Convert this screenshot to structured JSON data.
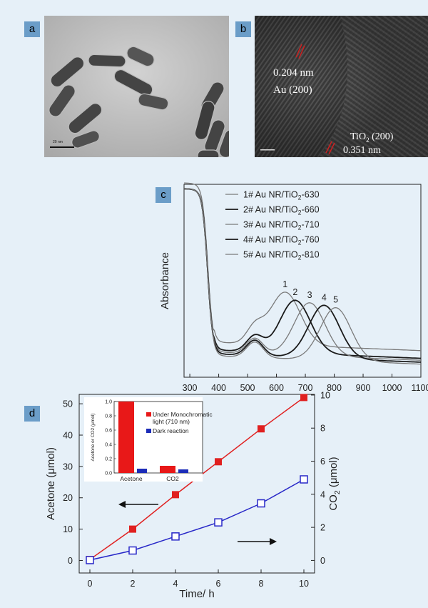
{
  "panels": {
    "a": {
      "label": "a",
      "scale_text": "20 nm"
    },
    "b": {
      "label": "b",
      "au_spacing": "0.204 nm",
      "au_plane": "Au (200)",
      "tio2_plane_main": "TiO",
      "tio2_plane_sub": "2",
      "tio2_plane_tail": " (200)",
      "tio2_spacing": "0.351 nm"
    },
    "c": {
      "label": "c"
    },
    "d": {
      "label": "d"
    }
  },
  "chart_data": [
    {
      "panel": "c",
      "type": "line",
      "ylabel": "Absorbance",
      "xlabel": "",
      "xlim": [
        280,
        1100
      ],
      "x_ticks": [
        300,
        400,
        500,
        600,
        700,
        800,
        900,
        1000,
        1100
      ],
      "y_ticks_shown": false,
      "legend_position": "top-right",
      "series": [
        {
          "name": "1# Au NR/TiO2-630",
          "legend_main": "1# Au NR/TiO",
          "legend_sub": "2",
          "legend_tail": "-630",
          "peak_label": "1",
          "peak_x": 630,
          "color": "#7a7a7a",
          "width": 1.3
        },
        {
          "name": "2# Au NR/TiO2-660",
          "legend_main": "2# Au NR/TiO",
          "legend_sub": "2",
          "legend_tail": "-660",
          "peak_label": "2",
          "peak_x": 665,
          "color": "#1a1a1a",
          "width": 1.8
        },
        {
          "name": "3# Au NR/TiO2-710",
          "legend_main": "3# Au NR/TiO",
          "legend_sub": "2",
          "legend_tail": "-710",
          "peak_label": "3",
          "peak_x": 715,
          "color": "#7a7a7a",
          "width": 1.3
        },
        {
          "name": "4# Au NR/TiO2-760",
          "legend_main": "4# Au NR/TiO",
          "legend_sub": "2",
          "legend_tail": "-760",
          "peak_label": "4",
          "peak_x": 765,
          "color": "#1a1a1a",
          "width": 1.8
        },
        {
          "name": "5# Au NR/TiO2-810",
          "legend_main": "5# Au NR/TiO",
          "legend_sub": "2",
          "legend_tail": "-810",
          "peak_label": "5",
          "peak_x": 805,
          "color": "#7a7a7a",
          "width": 1.3
        }
      ]
    },
    {
      "panel": "d",
      "type": "line",
      "xlabel": "Time/ h",
      "ylabel": "Acetone (μmol)",
      "y2label_main": "CO",
      "y2label_sub": "2",
      "y2label_tail": " (μmol)",
      "xlim": [
        -0.5,
        10.5
      ],
      "ylim": [
        -4,
        53
      ],
      "y2lim": [
        -0.76,
        10.04
      ],
      "x_ticks": [
        0,
        2,
        4,
        6,
        8,
        10
      ],
      "y_ticks": [
        0,
        10,
        20,
        30,
        40,
        50
      ],
      "y2_ticks": [
        0,
        2,
        4,
        6,
        8,
        10
      ],
      "series": [
        {
          "name": "Acetone",
          "axis": "left",
          "color": "#e02020",
          "marker": "filled-square",
          "x": [
            0,
            2,
            4,
            6,
            8,
            10
          ],
          "y": [
            0.3,
            10,
            21,
            31.5,
            42,
            52
          ]
        },
        {
          "name": "CO2",
          "axis": "right",
          "color": "#2828c8",
          "marker": "open-square",
          "x": [
            0,
            2,
            4,
            6,
            8,
            10
          ],
          "y": [
            0.02,
            0.6,
            1.45,
            2.3,
            3.45,
            4.9
          ]
        }
      ],
      "inset": {
        "type": "bar",
        "ylabel": "Acetone or CO2 (μmol)",
        "ylim": [
          0,
          1.0
        ],
        "y_ticks": [
          "0.0",
          "0.2",
          "0.4",
          "0.6",
          "0.8",
          "1.0"
        ],
        "categories": [
          "Acetone",
          "CO2"
        ],
        "series": [
          {
            "name": "Under Monochromatic light (710 nm)",
            "legend_line1": "Under Monochromatic",
            "legend_line2": "light (710 nm)",
            "color": "#e81818",
            "values": [
              1.0,
              0.1
            ]
          },
          {
            "name": "Dark reaction",
            "legend_line1": "Dark reaction",
            "color": "#1c2cb8",
            "values": [
              0.06,
              0.05
            ]
          }
        ]
      }
    }
  ]
}
